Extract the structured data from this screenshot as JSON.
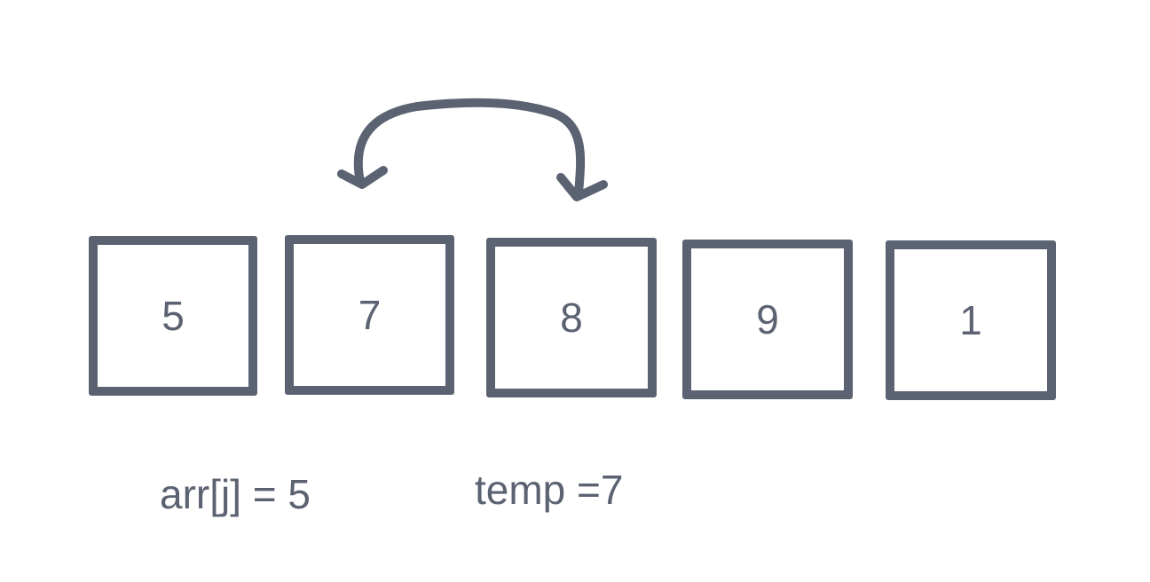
{
  "array": {
    "cells": [
      "5",
      "7",
      "8",
      "9",
      "1"
    ]
  },
  "labels": {
    "arr_j": "arr[j] = 5",
    "temp": "temp =7"
  },
  "colors": {
    "stroke": "#5b6271",
    "background": "#ffffff"
  },
  "icons": {
    "swap_arrow": "curved-double-headed-arrow"
  }
}
